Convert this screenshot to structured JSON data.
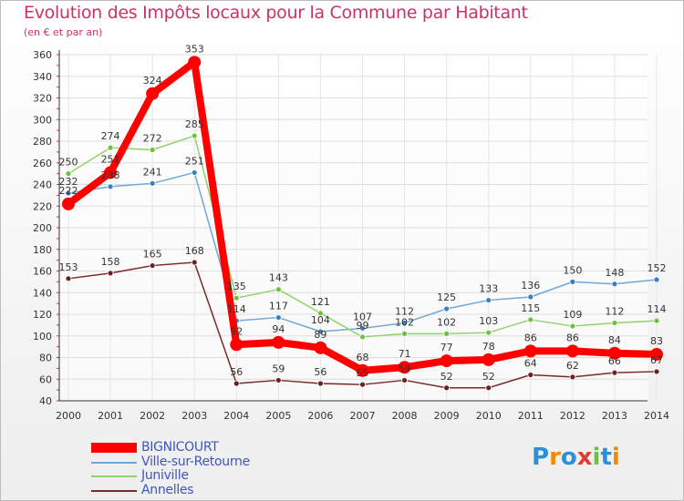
{
  "colors": {
    "title": "#c8336a",
    "bignicourt": "#ff0000",
    "ville": "#6ea8d8",
    "juniville": "#8fd46a",
    "annelles": "#7a2a2a",
    "ville_dot": "#3a7fc4",
    "juniville_dot": "#6cc33a",
    "annelles_dot": "#6e1f1f"
  },
  "logo_text": "Proxiti",
  "chart_data": {
    "type": "line",
    "title": "Evolution des Impôts locaux pour la Commune par Habitant",
    "subtitle": "(en € et par an)",
    "categories": [
      "2000",
      "2001",
      "2002",
      "2003",
      "2004",
      "2005",
      "2006",
      "2007",
      "2008",
      "2009",
      "2010",
      "2011",
      "2012",
      "2013",
      "2014"
    ],
    "ylim": [
      40,
      360
    ],
    "yticks": [
      40,
      60,
      80,
      100,
      120,
      140,
      160,
      180,
      200,
      220,
      240,
      260,
      280,
      300,
      320,
      340,
      360
    ],
    "series": [
      {
        "name": "BIGNICOURT",
        "values": [
          222,
          251,
          324,
          353,
          92,
          94,
          89,
          68,
          71,
          77,
          78,
          86,
          86,
          84,
          83
        ]
      },
      {
        "name": "Ville-sur-Retourne",
        "values": [
          232,
          238,
          241,
          251,
          114,
          117,
          104,
          107,
          112,
          125,
          133,
          136,
          150,
          148,
          152
        ]
      },
      {
        "name": "Juniville",
        "values": [
          250,
          274,
          272,
          285,
          135,
          143,
          121,
          99,
          102,
          102,
          103,
          115,
          109,
          112,
          114
        ]
      },
      {
        "name": "Annelles",
        "values": [
          153,
          158,
          165,
          168,
          56,
          59,
          56,
          55,
          59,
          52,
          52,
          64,
          62,
          66,
          67
        ]
      }
    ]
  }
}
